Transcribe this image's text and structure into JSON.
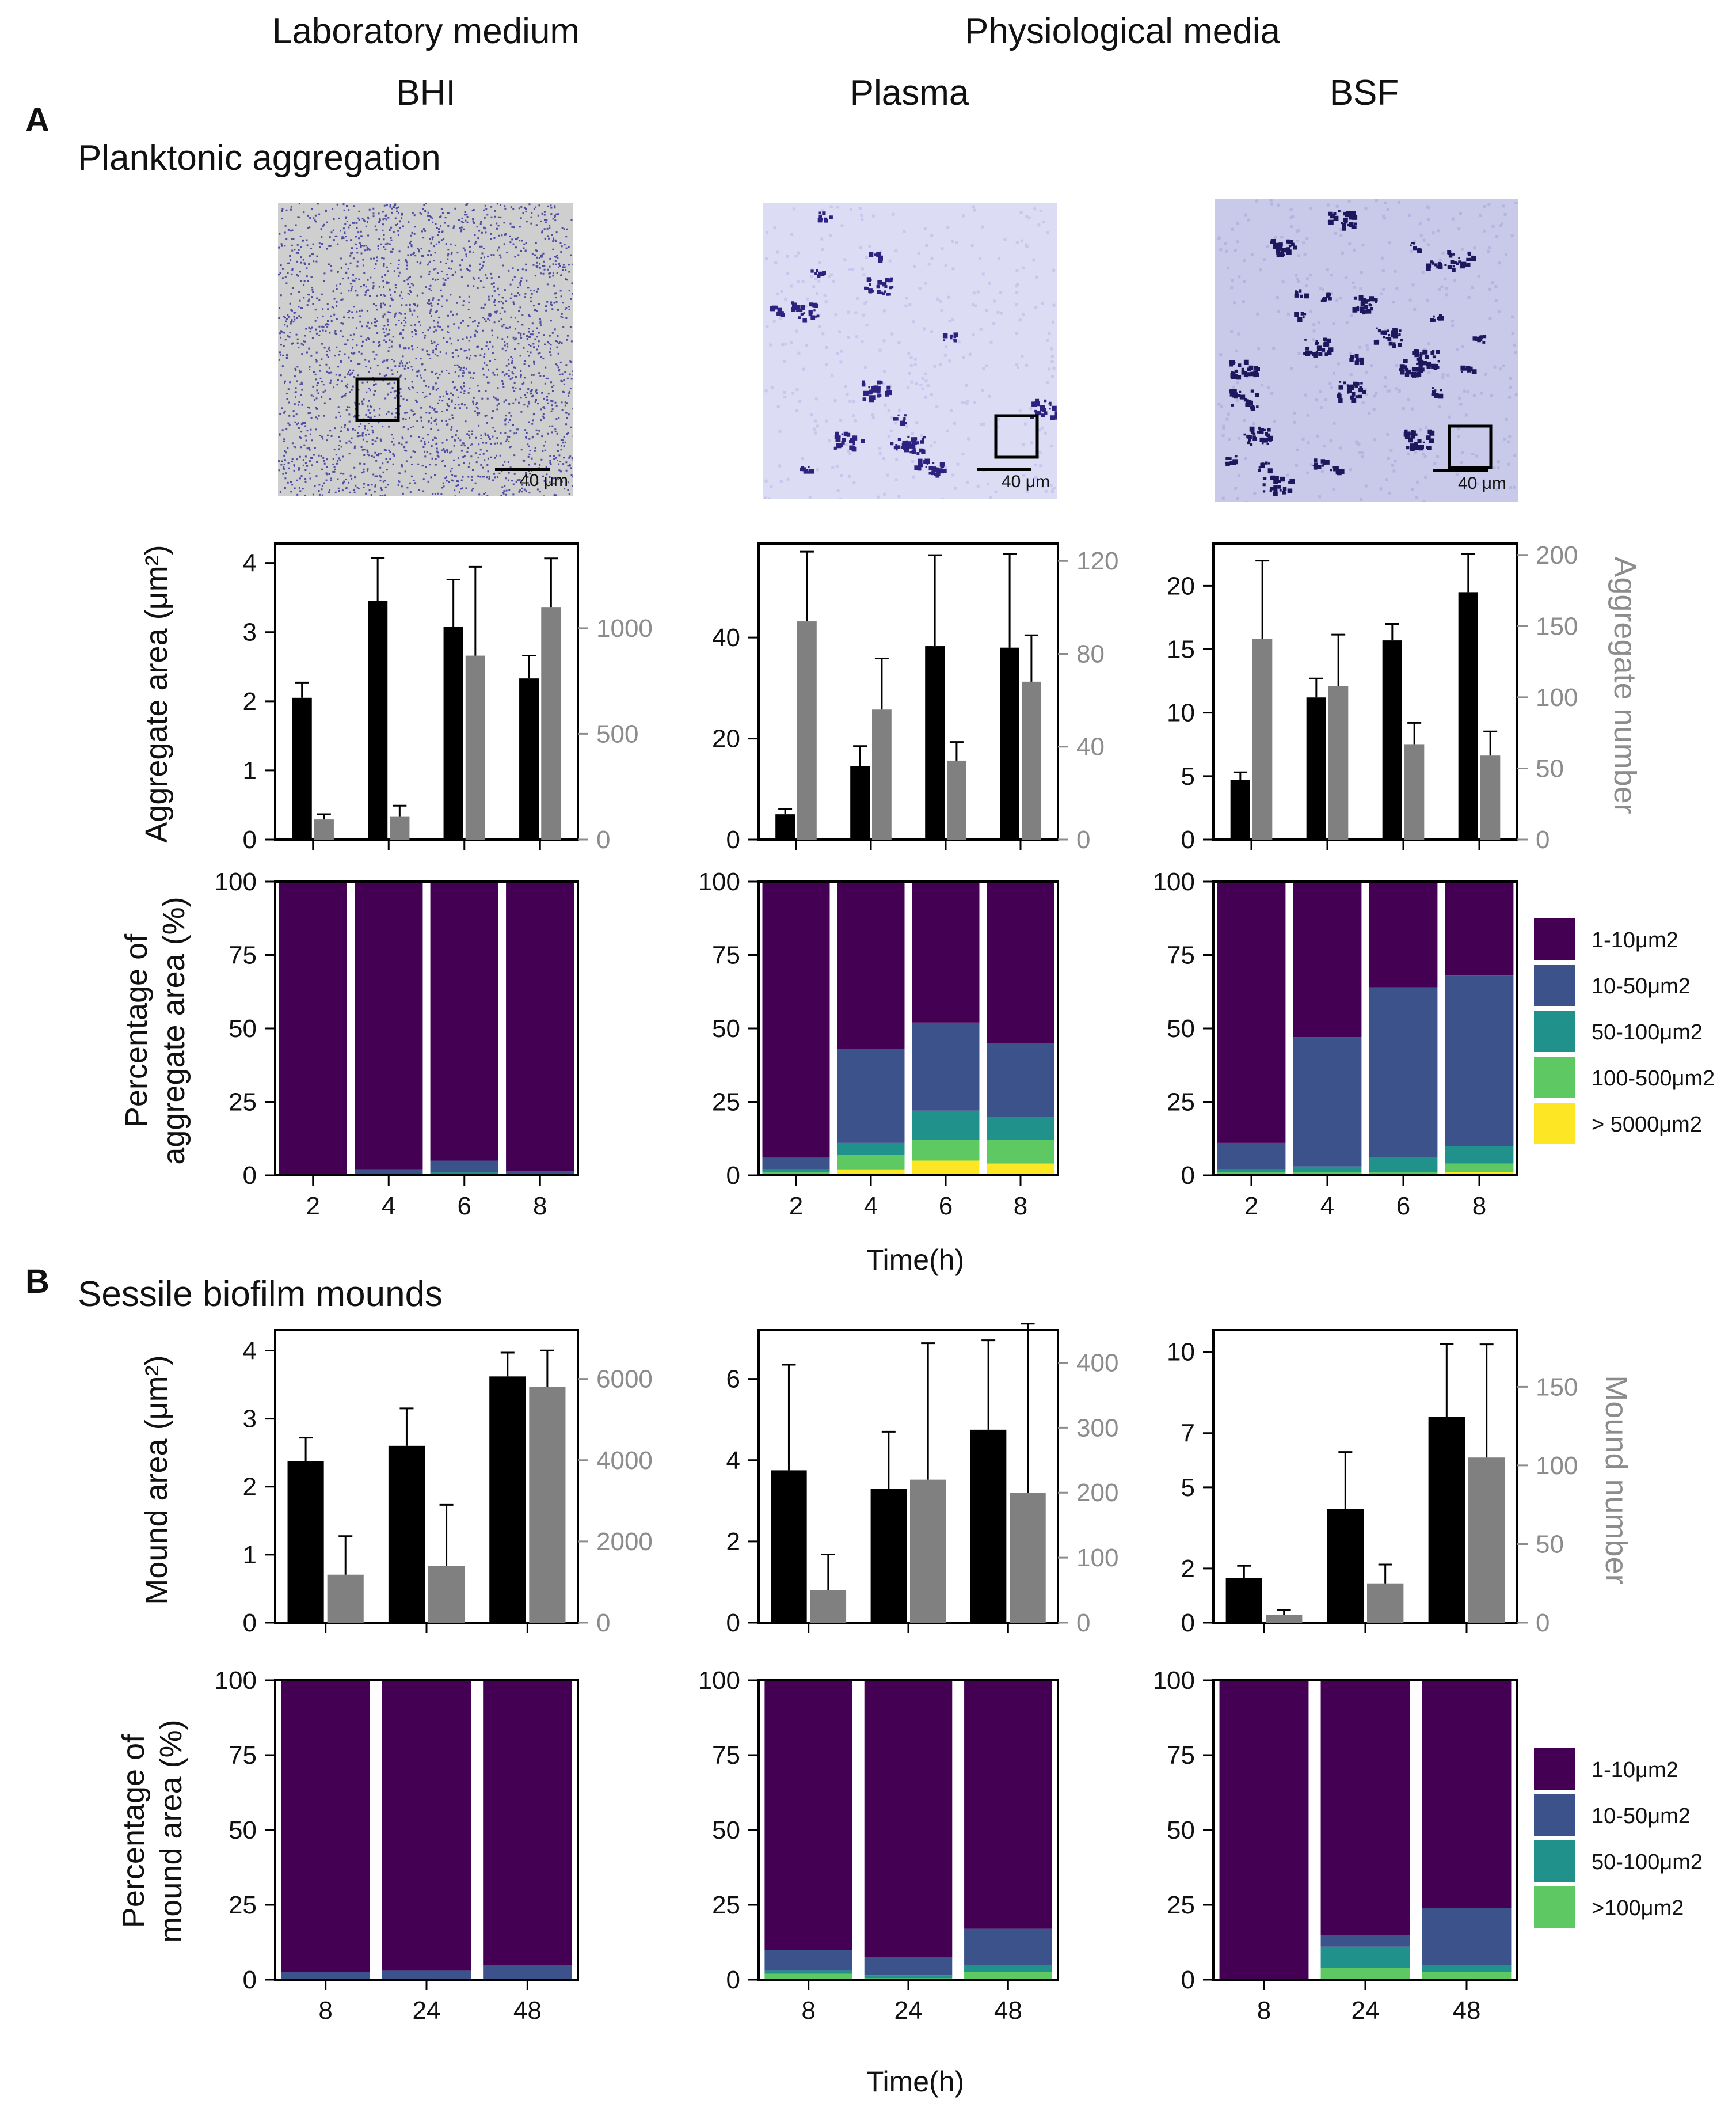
{
  "header": {
    "laboratory": "Laboratory medium",
    "physiological": "Physiological media",
    "media": [
      "BHI",
      "Plasma",
      "BSF"
    ]
  },
  "panel_a": {
    "letter": "A",
    "title": "Planktonic aggregation"
  },
  "panel_b": {
    "letter": "B",
    "title": "Sessile biofilm mounds"
  },
  "scale_bar": "40 μm",
  "axis_labels": {
    "aggregate_area": "Aggregate area (μm²)",
    "aggregate_number": "Aggregate number",
    "pct_aggregate_1": "Percentage of",
    "pct_aggregate_2": "aggregate area (%)",
    "mound_area": "Mound area (μm²)",
    "mound_number": "Mound number",
    "pct_mound_1": "Percentage of",
    "pct_mound_2": "mound area (%)",
    "time": "Time(h)"
  },
  "colors": {
    "area_bar": "#000000",
    "number_bar": "#808080",
    "number_axis": "#8c8c8c",
    "c1": "#440154",
    "c2": "#3b528b",
    "c3": "#21918c",
    "c4": "#5ec962",
    "c5": "#fde725"
  },
  "legend_a": [
    {
      "label": "1-10μm2",
      "color": "#440154"
    },
    {
      "label": "10-50μm2",
      "color": "#3b528b"
    },
    {
      "label": "50-100μm2",
      "color": "#21918c"
    },
    {
      "label": "100-500μm2",
      "color": "#5ec962"
    },
    {
      "label": "> 5000μm2",
      "color": "#fde725"
    }
  ],
  "legend_b": [
    {
      "label": "1-10μm2",
      "color": "#440154"
    },
    {
      "label": "10-50μm2",
      "color": "#3b528b"
    },
    {
      "label": "50-100μm2",
      "color": "#21918c"
    },
    {
      "label": ">100μm2",
      "color": "#5ec962"
    }
  ],
  "chart_data": [
    {
      "id": "a_bhi_bar",
      "type": "bar",
      "panel": "A",
      "medium": "BHI",
      "categories": [
        "2",
        "4",
        "6",
        "8"
      ],
      "series": [
        {
          "name": "Aggregate area",
          "axis": "left",
          "values": [
            2.05,
            3.45,
            3.08,
            2.33
          ],
          "error": [
            0.22,
            0.62,
            0.68,
            0.33
          ]
        },
        {
          "name": "Aggregate number",
          "axis": "right",
          "values": [
            95,
            110,
            870,
            1100
          ],
          "error": [
            25,
            50,
            420,
            230
          ]
        }
      ],
      "yleft": {
        "label": "Aggregate area (μm²)",
        "ticks": [
          0,
          1,
          2,
          3,
          4
        ],
        "range": [
          0,
          4.28
        ]
      },
      "yright": {
        "label": "Aggregate number",
        "ticks": [
          0,
          500,
          1000
        ],
        "range": [
          0,
          1400
        ]
      }
    },
    {
      "id": "a_plasma_bar",
      "type": "bar",
      "panel": "A",
      "medium": "Plasma",
      "categories": [
        "2",
        "4",
        "6",
        "8"
      ],
      "series": [
        {
          "name": "Aggregate area",
          "axis": "left",
          "values": [
            5,
            14.5,
            38.3,
            38
          ],
          "error": [
            1,
            4,
            18,
            18.5
          ]
        },
        {
          "name": "Aggregate number",
          "axis": "right",
          "values": [
            94,
            56,
            34,
            68
          ],
          "error": [
            30,
            22,
            8,
            20
          ]
        }
      ],
      "yleft": {
        "ticks": [
          0,
          20,
          40
        ],
        "range": [
          0,
          58.6
        ]
      },
      "yright": {
        "ticks": [
          0,
          40,
          80,
          120
        ],
        "range": [
          0,
          127.5
        ]
      }
    },
    {
      "id": "a_bsf_bar",
      "type": "bar",
      "panel": "A",
      "medium": "BSF",
      "categories": [
        "2",
        "4",
        "6",
        "8"
      ],
      "series": [
        {
          "name": "Aggregate area",
          "axis": "left",
          "values": [
            4.7,
            11.2,
            15.7,
            19.5
          ],
          "error": [
            0.6,
            1.5,
            1.3,
            3
          ]
        },
        {
          "name": "Aggregate number",
          "axis": "right",
          "values": [
            141,
            108,
            67,
            59
          ],
          "error": [
            55,
            36,
            15,
            17
          ]
        }
      ],
      "yleft": {
        "ticks": [
          0,
          5,
          10,
          15,
          20
        ],
        "range": [
          0,
          23.33
        ]
      },
      "yright": {
        "label": "Aggregate number",
        "ticks": [
          0,
          50,
          100,
          150,
          200
        ],
        "range": [
          0,
          208
        ]
      }
    },
    {
      "id": "a_bhi_pct",
      "type": "bar",
      "stacked": true,
      "panel": "A",
      "medium": "BHI",
      "categories": [
        "2",
        "4",
        "6",
        "8"
      ],
      "series": [
        {
          "name": "1-10μm2",
          "values": [
            100,
            98,
            95,
            98.5
          ]
        },
        {
          "name": "10-50μm2",
          "values": [
            0,
            1.5,
            4,
            1.5
          ]
        },
        {
          "name": "50-100μm2",
          "values": [
            0,
            0.5,
            1,
            0
          ]
        },
        {
          "name": "100-500μm2",
          "values": [
            0,
            0,
            0,
            0
          ]
        },
        {
          "name": "> 5000μm2",
          "values": [
            0,
            0,
            0,
            0
          ]
        }
      ],
      "ylabel": "Percentage of aggregate area (%)",
      "xlabel": "",
      "ylim": [
        0,
        100
      ]
    },
    {
      "id": "a_plasma_pct",
      "type": "bar",
      "stacked": true,
      "panel": "A",
      "medium": "Plasma",
      "categories": [
        "2",
        "4",
        "6",
        "8"
      ],
      "series": [
        {
          "name": "1-10μm2",
          "values": [
            94,
            57,
            48,
            55
          ]
        },
        {
          "name": "10-50μm2",
          "values": [
            4,
            32,
            30,
            25
          ]
        },
        {
          "name": "50-100μm2",
          "values": [
            1,
            4,
            10,
            8
          ]
        },
        {
          "name": "100-500μm2",
          "values": [
            1,
            5,
            7,
            8
          ]
        },
        {
          "name": "> 5000μm2",
          "values": [
            0,
            2,
            5,
            4
          ]
        }
      ],
      "ylim": [
        0,
        100
      ]
    },
    {
      "id": "a_bsf_pct",
      "type": "bar",
      "stacked": true,
      "panel": "A",
      "medium": "BSF",
      "categories": [
        "2",
        "4",
        "6",
        "8"
      ],
      "series": [
        {
          "name": "1-10μm2",
          "values": [
            89,
            53,
            36,
            32
          ]
        },
        {
          "name": "10-50μm2",
          "values": [
            9,
            44,
            58,
            58
          ]
        },
        {
          "name": "50-100μm2",
          "values": [
            1,
            2,
            5,
            6
          ]
        },
        {
          "name": "100-500μm2",
          "values": [
            1,
            1,
            1,
            3
          ]
        },
        {
          "name": "> 5000μm2",
          "values": [
            0,
            0,
            0,
            1
          ]
        }
      ],
      "ylim": [
        0,
        100
      ]
    },
    {
      "id": "b_bhi_bar",
      "type": "bar",
      "panel": "B",
      "medium": "BHI",
      "categories": [
        "8",
        "24",
        "48"
      ],
      "series": [
        {
          "name": "Mound area",
          "axis": "left",
          "values": [
            2.37,
            2.6,
            3.62
          ],
          "error": [
            0.35,
            0.55,
            0.35
          ]
        },
        {
          "name": "Mound number",
          "axis": "right",
          "values": [
            1180,
            1400,
            5800
          ],
          "error": [
            950,
            1500,
            900
          ]
        }
      ],
      "yleft": {
        "label": "Mound area (μm²)",
        "ticks": [
          0,
          1,
          2,
          3,
          4
        ],
        "range": [
          0,
          4.3
        ]
      },
      "yright": {
        "ticks": [
          0,
          2000,
          4000,
          6000
        ],
        "range": [
          0,
          7200
        ]
      }
    },
    {
      "id": "b_plasma_bar",
      "type": "bar",
      "panel": "B",
      "medium": "Plasma",
      "categories": [
        "8",
        "24",
        "48"
      ],
      "series": [
        {
          "name": "Mound area",
          "axis": "left",
          "values": [
            3.75,
            3.3,
            4.75
          ],
          "error": [
            2.6,
            1.4,
            2.2
          ]
        },
        {
          "name": "Mound number",
          "axis": "right",
          "values": [
            50,
            220,
            200
          ],
          "error": [
            55,
            210,
            260
          ]
        }
      ],
      "yleft": {
        "ticks": [
          0,
          2,
          4,
          6
        ],
        "range": [
          0,
          7.2
        ]
      },
      "yright": {
        "ticks": [
          0,
          100,
          200,
          300,
          400
        ],
        "range": [
          0,
          450
        ]
      }
    },
    {
      "id": "b_bsf_bar",
      "type": "bar",
      "panel": "B",
      "medium": "BSF",
      "categories": [
        "8",
        "24",
        "48"
      ],
      "series": [
        {
          "name": "Mound area",
          "axis": "left",
          "values": [
            1.65,
            4.2,
            7.6
          ],
          "error": [
            0.45,
            2.1,
            2.7
          ]
        },
        {
          "name": "Mound number",
          "axis": "right",
          "values": [
            5,
            25,
            105
          ],
          "error": [
            3,
            12,
            72
          ]
        }
      ],
      "yleft": {
        "ticks": [
          0,
          2,
          5,
          7,
          10
        ],
        "range": [
          0,
          10.8
        ]
      },
      "yright": {
        "label": "Mound number",
        "ticks": [
          0,
          50,
          100,
          150
        ],
        "range": [
          0,
          186
        ]
      }
    },
    {
      "id": "b_bhi_pct",
      "type": "bar",
      "stacked": true,
      "panel": "B",
      "medium": "BHI",
      "categories": [
        "8",
        "24",
        "48"
      ],
      "series": [
        {
          "name": "1-10μm2",
          "values": [
            97.5,
            97,
            95
          ]
        },
        {
          "name": "10-50μm2",
          "values": [
            2.5,
            3,
            5
          ]
        },
        {
          "name": "50-100μm2",
          "values": [
            0,
            0,
            0
          ]
        },
        {
          "name": ">100μm2",
          "values": [
            0,
            0,
            0
          ]
        }
      ],
      "ylabel": "Percentage of mound area (%)",
      "ylim": [
        0,
        100
      ]
    },
    {
      "id": "b_plasma_pct",
      "type": "bar",
      "stacked": true,
      "panel": "B",
      "medium": "Plasma",
      "categories": [
        "8",
        "24",
        "48"
      ],
      "series": [
        {
          "name": "1-10μm2",
          "values": [
            90,
            92.5,
            83
          ]
        },
        {
          "name": "10-50μm2",
          "values": [
            7,
            6,
            12
          ]
        },
        {
          "name": "50-100μm2",
          "values": [
            1,
            1,
            2.5
          ]
        },
        {
          "name": ">100μm2",
          "values": [
            2,
            0.5,
            2.5
          ]
        }
      ],
      "ylim": [
        0,
        100
      ]
    },
    {
      "id": "b_bsf_pct",
      "type": "bar",
      "stacked": true,
      "panel": "B",
      "medium": "BSF",
      "categories": [
        "8",
        "24",
        "48"
      ],
      "series": [
        {
          "name": "1-10μm2",
          "values": [
            100,
            85,
            76
          ]
        },
        {
          "name": "10-50μm2",
          "values": [
            0,
            4,
            19
          ]
        },
        {
          "name": "50-100μm2",
          "values": [
            0,
            7,
            2.5
          ]
        },
        {
          "name": ">100μm2",
          "values": [
            0,
            4,
            2.5
          ]
        }
      ],
      "xlabel": "Time(h)",
      "ylim": [
        0,
        100
      ]
    }
  ]
}
